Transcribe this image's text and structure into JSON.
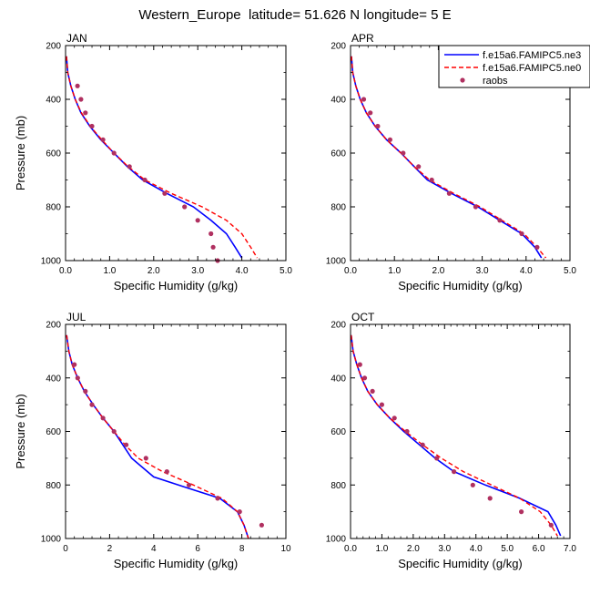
{
  "page": {
    "title": "Western_Europe  latitude= 51.626 N longitude= 5 E"
  },
  "legend": {
    "placement": "top-right of APR panel",
    "entries": [
      {
        "label": "f.e15a6.FAMIPC5.ne3",
        "color": "#0000ff",
        "style": "solid"
      },
      {
        "label": "f.e15a6.FAMIPC5.ne0",
        "color": "#ff0000",
        "style": "dashed"
      },
      {
        "label": "raobs",
        "color": "#b03060",
        "style": "marker"
      }
    ]
  },
  "chart_data": [
    {
      "type": "line",
      "panel_label": "JAN",
      "xlabel": "Specific Humidity (g/kg)",
      "ylabel": "Pressure (mb)",
      "xlim": [
        0,
        5
      ],
      "ylim": [
        1000,
        200
      ],
      "xticks": [
        "0.0",
        "1.0",
        "2.0",
        "3.0",
        "4.0",
        "5.0"
      ],
      "yticks": [
        "200",
        "400",
        "600",
        "800",
        "1000"
      ],
      "series": [
        {
          "color": "#0000ff",
          "dash": "solid",
          "points": [
            [
              0.02,
              240
            ],
            [
              0.05,
              300
            ],
            [
              0.12,
              350
            ],
            [
              0.22,
              400
            ],
            [
              0.35,
              450
            ],
            [
              0.55,
              500
            ],
            [
              0.8,
              550
            ],
            [
              1.1,
              600
            ],
            [
              1.4,
              650
            ],
            [
              1.75,
              700
            ],
            [
              2.3,
              750
            ],
            [
              2.9,
              800
            ],
            [
              3.3,
              850
            ],
            [
              3.65,
              900
            ],
            [
              3.85,
              950
            ],
            [
              4.0,
              990
            ]
          ]
        },
        {
          "color": "#ff0000",
          "dash": "dashed",
          "points": [
            [
              0.02,
              240
            ],
            [
              0.05,
              300
            ],
            [
              0.12,
              350
            ],
            [
              0.22,
              400
            ],
            [
              0.36,
              450
            ],
            [
              0.56,
              500
            ],
            [
              0.82,
              550
            ],
            [
              1.1,
              600
            ],
            [
              1.42,
              650
            ],
            [
              1.8,
              700
            ],
            [
              2.4,
              750
            ],
            [
              3.1,
              800
            ],
            [
              3.65,
              850
            ],
            [
              4.0,
              900
            ],
            [
              4.2,
              950
            ],
            [
              4.35,
              990
            ]
          ]
        }
      ],
      "points": [
        [
          0.27,
          350
        ],
        [
          0.35,
          400
        ],
        [
          0.45,
          450
        ],
        [
          0.6,
          500
        ],
        [
          0.85,
          550
        ],
        [
          1.1,
          600
        ],
        [
          1.45,
          650
        ],
        [
          1.8,
          700
        ],
        [
          2.25,
          750
        ],
        [
          2.7,
          800
        ],
        [
          3.0,
          850
        ],
        [
          3.3,
          900
        ],
        [
          3.35,
          950
        ],
        [
          3.45,
          1000
        ]
      ]
    },
    {
      "type": "line",
      "panel_label": "APR",
      "xlabel": "Specific Humidity (g/kg)",
      "ylabel": "",
      "xlim": [
        0,
        5
      ],
      "ylim": [
        1000,
        200
      ],
      "xticks": [
        "0.0",
        "1.0",
        "2.0",
        "3.0",
        "4.0",
        "5.0"
      ],
      "yticks": [
        "200",
        "400",
        "600",
        "800",
        "1000"
      ],
      "series": [
        {
          "color": "#0000ff",
          "dash": "solid",
          "points": [
            [
              0.02,
              240
            ],
            [
              0.05,
              300
            ],
            [
              0.12,
              350
            ],
            [
              0.22,
              400
            ],
            [
              0.36,
              450
            ],
            [
              0.56,
              500
            ],
            [
              0.82,
              550
            ],
            [
              1.15,
              600
            ],
            [
              1.45,
              650
            ],
            [
              1.75,
              700
            ],
            [
              2.3,
              750
            ],
            [
              2.9,
              800
            ],
            [
              3.4,
              850
            ],
            [
              3.9,
              900
            ],
            [
              4.2,
              950
            ],
            [
              4.35,
              990
            ]
          ]
        },
        {
          "color": "#ff0000",
          "dash": "dashed",
          "points": [
            [
              0.02,
              240
            ],
            [
              0.05,
              300
            ],
            [
              0.12,
              350
            ],
            [
              0.22,
              400
            ],
            [
              0.36,
              450
            ],
            [
              0.56,
              500
            ],
            [
              0.82,
              550
            ],
            [
              1.15,
              600
            ],
            [
              1.45,
              650
            ],
            [
              1.8,
              700
            ],
            [
              2.35,
              750
            ],
            [
              2.95,
              800
            ],
            [
              3.45,
              850
            ],
            [
              3.95,
              900
            ],
            [
              4.25,
              950
            ],
            [
              4.45,
              990
            ]
          ]
        }
      ],
      "points": [
        [
          0.3,
          400
        ],
        [
          0.45,
          450
        ],
        [
          0.62,
          500
        ],
        [
          0.9,
          550
        ],
        [
          1.2,
          600
        ],
        [
          1.55,
          650
        ],
        [
          1.85,
          700
        ],
        [
          2.25,
          750
        ],
        [
          2.85,
          800
        ],
        [
          3.4,
          850
        ],
        [
          3.9,
          900
        ],
        [
          4.25,
          950
        ]
      ]
    },
    {
      "type": "line",
      "panel_label": "JUL",
      "xlabel": "Specific Humidity (g/kg)",
      "ylabel": "Pressure (mb)",
      "xlim": [
        0,
        10
      ],
      "ylim": [
        1000,
        200
      ],
      "xticks": [
        "0",
        "2",
        "4",
        "6",
        "8",
        "10"
      ],
      "yticks": [
        "200",
        "400",
        "600",
        "800",
        "1000"
      ],
      "series": [
        {
          "color": "#0000ff",
          "dash": "solid",
          "points": [
            [
              0.05,
              240
            ],
            [
              0.15,
              300
            ],
            [
              0.3,
              350
            ],
            [
              0.55,
              400
            ],
            [
              0.85,
              450
            ],
            [
              1.25,
              500
            ],
            [
              1.7,
              550
            ],
            [
              2.2,
              600
            ],
            [
              2.6,
              650
            ],
            [
              3.0,
              700
            ],
            [
              4.0,
              770
            ],
            [
              5.5,
              810
            ],
            [
              7.0,
              850
            ],
            [
              7.8,
              900
            ],
            [
              8.1,
              950
            ],
            [
              8.3,
              1000
            ]
          ]
        },
        {
          "color": "#ff0000",
          "dash": "dashed",
          "points": [
            [
              0.05,
              240
            ],
            [
              0.15,
              300
            ],
            [
              0.3,
              350
            ],
            [
              0.55,
              400
            ],
            [
              0.85,
              450
            ],
            [
              1.25,
              500
            ],
            [
              1.7,
              550
            ],
            [
              2.2,
              600
            ],
            [
              2.7,
              650
            ],
            [
              3.3,
              700
            ],
            [
              4.4,
              750
            ],
            [
              5.8,
              800
            ],
            [
              7.1,
              850
            ],
            [
              7.8,
              900
            ],
            [
              8.1,
              950
            ],
            [
              8.3,
              1000
            ]
          ]
        }
      ],
      "points": [
        [
          0.4,
          350
        ],
        [
          0.55,
          400
        ],
        [
          0.9,
          450
        ],
        [
          1.2,
          500
        ],
        [
          1.7,
          550
        ],
        [
          2.2,
          600
        ],
        [
          2.75,
          650
        ],
        [
          3.65,
          700
        ],
        [
          4.6,
          750
        ],
        [
          5.6,
          800
        ],
        [
          6.9,
          850
        ],
        [
          7.9,
          900
        ],
        [
          8.9,
          950
        ]
      ]
    },
    {
      "type": "line",
      "panel_label": "OCT",
      "xlabel": "Specific Humidity (g/kg)",
      "ylabel": "",
      "xlim": [
        0,
        7
      ],
      "ylim": [
        1000,
        200
      ],
      "xticks": [
        "0.0",
        "1.0",
        "2.0",
        "3.0",
        "4.0",
        "5.0",
        "6.0",
        "7.0"
      ],
      "yticks": [
        "200",
        "400",
        "600",
        "800",
        "1000"
      ],
      "series": [
        {
          "color": "#0000ff",
          "dash": "solid",
          "points": [
            [
              0.02,
              240
            ],
            [
              0.08,
              300
            ],
            [
              0.2,
              350
            ],
            [
              0.35,
              400
            ],
            [
              0.55,
              450
            ],
            [
              0.85,
              500
            ],
            [
              1.25,
              550
            ],
            [
              1.7,
              600
            ],
            [
              2.2,
              650
            ],
            [
              2.7,
              700
            ],
            [
              3.3,
              750
            ],
            [
              4.3,
              800
            ],
            [
              5.4,
              850
            ],
            [
              6.3,
              900
            ],
            [
              6.55,
              950
            ],
            [
              6.7,
              990
            ]
          ]
        },
        {
          "color": "#ff0000",
          "dash": "dashed",
          "points": [
            [
              0.02,
              240
            ],
            [
              0.08,
              300
            ],
            [
              0.2,
              350
            ],
            [
              0.35,
              400
            ],
            [
              0.55,
              450
            ],
            [
              0.85,
              500
            ],
            [
              1.25,
              550
            ],
            [
              1.75,
              600
            ],
            [
              2.3,
              650
            ],
            [
              2.9,
              700
            ],
            [
              3.6,
              750
            ],
            [
              4.5,
              800
            ],
            [
              5.4,
              850
            ],
            [
              6.05,
              900
            ],
            [
              6.4,
              950
            ],
            [
              6.6,
              990
            ]
          ]
        }
      ],
      "points": [
        [
          0.3,
          350
        ],
        [
          0.45,
          400
        ],
        [
          0.7,
          450
        ],
        [
          1.0,
          500
        ],
        [
          1.4,
          550
        ],
        [
          1.8,
          600
        ],
        [
          2.3,
          650
        ],
        [
          2.75,
          700
        ],
        [
          3.3,
          750
        ],
        [
          3.9,
          800
        ],
        [
          4.45,
          850
        ],
        [
          5.45,
          900
        ],
        [
          6.4,
          950
        ]
      ]
    }
  ]
}
